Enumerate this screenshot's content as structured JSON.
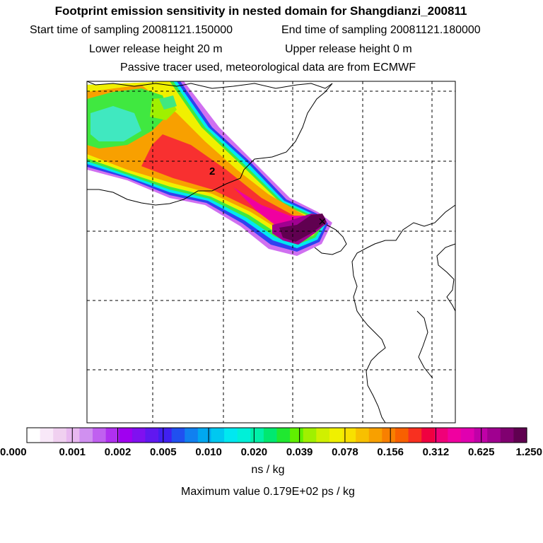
{
  "header": {
    "title": "Footprint emission sensitivity in nested domain for Shangdianzi_200811",
    "start_time": "Start time of sampling 20081121.150000",
    "end_time": "End time of sampling 20081121.180000",
    "lower_release": "Lower release height   20 m",
    "upper_release": "Upper release height    0 m",
    "tracer_info": "Passive tracer used, meteorological data are from ECMWF"
  },
  "map": {
    "contour_label": "2",
    "receptor_marker": "×"
  },
  "colorbar": {
    "tick_labels": [
      "0.000",
      "0.001",
      "0.002",
      "0.005",
      "0.010",
      "0.020",
      "0.039",
      "0.078",
      "0.156",
      "0.312",
      "0.625",
      "1.250"
    ],
    "colors": [
      "#ffffff",
      "#f8e8f8",
      "#f0d0f0",
      "#e8b8f0",
      "#d090f0",
      "#c060f0",
      "#b030f0",
      "#a000f0",
      "#8010f0",
      "#6018f0",
      "#4020f0",
      "#2050f0",
      "#1080f0",
      "#00a8f0",
      "#00c8f0",
      "#00e8f0",
      "#00f0d8",
      "#00f0a8",
      "#00e870",
      "#20e830",
      "#60f000",
      "#a0f000",
      "#d0f000",
      "#f0f000",
      "#f8e000",
      "#f8c000",
      "#f8a000",
      "#f88000",
      "#f86000",
      "#f83020",
      "#f00040",
      "#f00078",
      "#f000a0",
      "#e000b0",
      "#c000a8",
      "#a00090",
      "#800070",
      "#600050"
    ],
    "unit": "ns / kg"
  },
  "footer": {
    "max_value": "Maximum value  0.179E+02 ps / kg"
  }
}
